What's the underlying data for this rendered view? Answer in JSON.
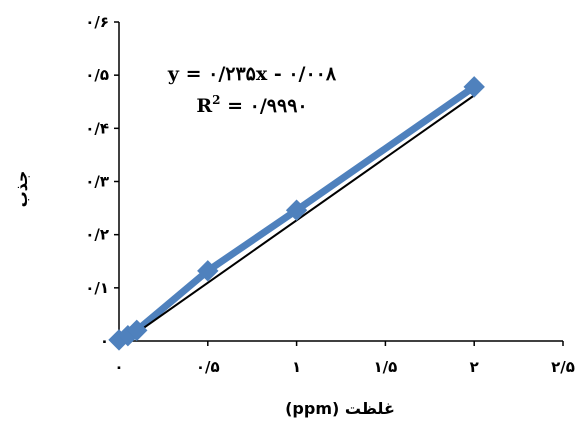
{
  "chart_data": {
    "type": "scatter",
    "xlabel": "غلظت (ppm)",
    "ylabel": "جذب",
    "xlim": [
      0,
      2.5
    ],
    "ylim": [
      0,
      0.6
    ],
    "x_ticks": [
      0,
      0.5,
      1,
      1.5,
      2,
      2.5
    ],
    "x_tick_labels": [
      "۰",
      "۰/۵",
      "۱",
      "۱/۵",
      "۲",
      "۲/۵"
    ],
    "y_ticks": [
      0,
      0.1,
      0.2,
      0.3,
      0.4,
      0.5,
      0.6
    ],
    "y_tick_labels": [
      "۰",
      "۰/۱",
      "۰/۲",
      "۰/۳",
      "۰/۴",
      "۰/۵",
      "۰/۶"
    ],
    "grid": false,
    "legend": "none",
    "series": [
      {
        "x": [
          0,
          0.05,
          0.1,
          0.5,
          1,
          2
        ],
        "y": [
          0.002,
          0.01,
          0.02,
          0.132,
          0.246,
          0.478
        ],
        "color": "#4f81bd",
        "marker": "diamond"
      }
    ],
    "trendline": {
      "type": "linear",
      "slope": 0.235,
      "intercept": -0.008,
      "x_range": [
        0,
        2
      ],
      "color": "#000000"
    },
    "annotations": {
      "equation": "y = ۰/۲۳۵x - ۰/۰۰۸",
      "r2_prefix": "R",
      "r2_sup": "2",
      "r2_value": " = ۰/۹۹۹۰"
    }
  }
}
